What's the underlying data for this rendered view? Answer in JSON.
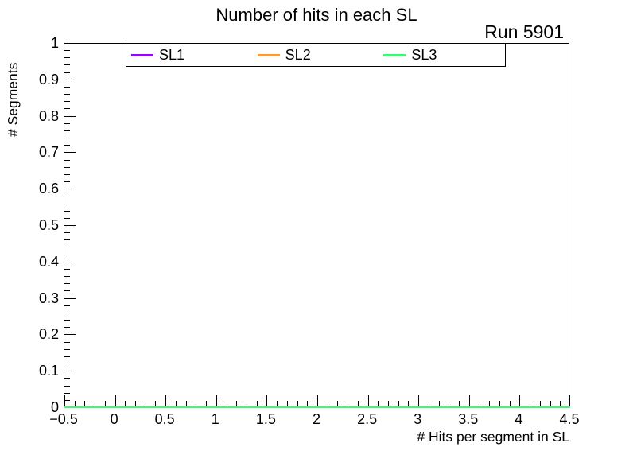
{
  "header": {
    "title": "Number of hits in each SL",
    "run_label": "Run 5901"
  },
  "chart_data": {
    "type": "line",
    "title": "Number of hits in each SL",
    "annotation": "Run 5901",
    "xlabel": "# Hits per segment in SL",
    "ylabel": "# Segments",
    "xlim": [
      -0.5,
      4.5
    ],
    "ylim": [
      0,
      1
    ],
    "grid": false,
    "legend_position": "top-inside",
    "background_color": "#ffffff",
    "frame_color": "#000000",
    "x_ticks": {
      "major_values": [
        -0.5,
        0,
        0.5,
        1,
        1.5,
        2,
        2.5,
        3,
        3.5,
        4,
        4.5
      ],
      "major_labels": [
        "−0.5",
        "0",
        "0.5",
        "1",
        "1.5",
        "2",
        "2.5",
        "3",
        "3.5",
        "4",
        "4.5"
      ],
      "minor_step": 0.1
    },
    "y_ticks": {
      "major_values": [
        0,
        0.1,
        0.2,
        0.3,
        0.4,
        0.5,
        0.6,
        0.7,
        0.8,
        0.9,
        1
      ],
      "major_labels": [
        "0",
        "0.1",
        "0.2",
        "0.3",
        "0.4",
        "0.5",
        "0.6",
        "0.7",
        "0.8",
        "0.9",
        "1"
      ],
      "minor_step": 0.02
    },
    "bin_edges": [
      -0.5,
      0.5,
      1.5,
      2.5,
      3.5,
      4.5
    ],
    "series": [
      {
        "name": "SL1",
        "color": "#9900ff",
        "values": [
          0,
          0,
          0,
          0,
          0
        ]
      },
      {
        "name": "SL2",
        "color": "#ff9933",
        "values": [
          0,
          0,
          0,
          0,
          0
        ]
      },
      {
        "name": "SL3",
        "color": "#33ff66",
        "values": [
          0,
          0,
          0,
          0,
          0
        ]
      }
    ]
  }
}
